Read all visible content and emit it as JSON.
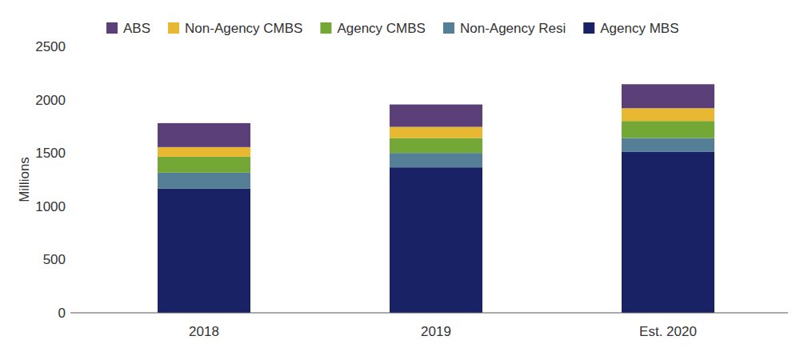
{
  "chart_data": {
    "type": "bar",
    "stacked": true,
    "legend": "top",
    "grid": false,
    "y_label": "Millions",
    "categories": [
      "2018",
      "2019",
      "Est. 2020"
    ],
    "series": [
      {
        "name": "Agency MBS",
        "color": "#1a2266",
        "values": [
          1165,
          1365,
          1510
        ]
      },
      {
        "name": "Non-Agency Resi",
        "color": "#557e97",
        "values": [
          150,
          135,
          130
        ]
      },
      {
        "name": "Agency CMBS",
        "color": "#73a836",
        "values": [
          150,
          140,
          160
        ]
      },
      {
        "name": "Non-Agency CMBS",
        "color": "#e8b833",
        "values": [
          90,
          105,
          120
        ]
      },
      {
        "name": "ABS",
        "color": "#5b3f78",
        "values": [
          225,
          210,
          225
        ]
      }
    ],
    "ylim": [
      0,
      2500
    ],
    "yticks": [
      0,
      500,
      1000,
      1500,
      2000,
      2500
    ]
  }
}
